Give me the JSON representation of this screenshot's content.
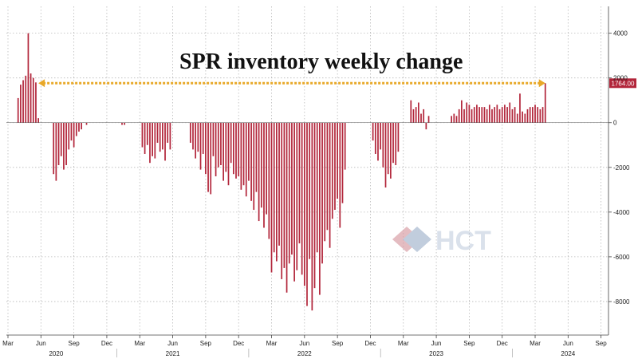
{
  "chart_data": {
    "type": "bar",
    "title": "SPR inventory weekly change",
    "ylim": [
      -9500,
      5200
    ],
    "yticks": [
      4000,
      2000,
      0,
      -2000,
      -4000,
      -6000,
      -8000
    ],
    "grid": true,
    "bar_color": "#b2253a",
    "reference_line": {
      "value": 1764,
      "color": "#e8a828",
      "label": "1764.00"
    },
    "x_ticks": [
      {
        "label": "Mar",
        "week": 0
      },
      {
        "label": "Jun",
        "week": 13
      },
      {
        "label": "Sep",
        "week": 26
      },
      {
        "label": "Dec",
        "week": 39
      },
      {
        "label": "Mar",
        "week": 52
      },
      {
        "label": "Jun",
        "week": 65
      },
      {
        "label": "Sep",
        "week": 78
      },
      {
        "label": "Dec",
        "week": 91
      },
      {
        "label": "Mar",
        "week": 104
      },
      {
        "label": "Jun",
        "week": 117
      },
      {
        "label": "Sep",
        "week": 130
      },
      {
        "label": "Dec",
        "week": 143
      },
      {
        "label": "Mar",
        "week": 156
      },
      {
        "label": "Jun",
        "week": 169
      },
      {
        "label": "Sep",
        "week": 182
      },
      {
        "label": "Dec",
        "week": 195
      },
      {
        "label": "Mar",
        "week": 208
      },
      {
        "label": "Jun",
        "week": 221
      },
      {
        "label": "Sep",
        "week": 234
      }
    ],
    "year_labels": [
      {
        "label": "2020",
        "week": 19
      },
      {
        "label": "2021",
        "week": 65
      },
      {
        "label": "2022",
        "week": 117
      },
      {
        "label": "2023",
        "week": 169
      },
      {
        "label": "2024",
        "week": 221
      }
    ],
    "series": [
      {
        "week": 4,
        "value": 1100
      },
      {
        "week": 5,
        "value": 1700
      },
      {
        "week": 6,
        "value": 1900
      },
      {
        "week": 7,
        "value": 2100
      },
      {
        "week": 8,
        "value": 4000
      },
      {
        "week": 9,
        "value": 2200
      },
      {
        "week": 10,
        "value": 2000
      },
      {
        "week": 11,
        "value": 1800
      },
      {
        "week": 12,
        "value": 200
      },
      {
        "week": 18,
        "value": -2300
      },
      {
        "week": 19,
        "value": -2600
      },
      {
        "week": 20,
        "value": -1900
      },
      {
        "week": 21,
        "value": -1500
      },
      {
        "week": 22,
        "value": -2100
      },
      {
        "week": 23,
        "value": -1900
      },
      {
        "week": 24,
        "value": -1200
      },
      {
        "week": 25,
        "value": -800
      },
      {
        "week": 26,
        "value": -1100
      },
      {
        "week": 27,
        "value": -600
      },
      {
        "week": 28,
        "value": -400
      },
      {
        "week": 29,
        "value": -300
      },
      {
        "week": 31,
        "value": -100
      },
      {
        "week": 45,
        "value": -100
      },
      {
        "week": 46,
        "value": -100
      },
      {
        "week": 53,
        "value": -1100
      },
      {
        "week": 54,
        "value": -1400
      },
      {
        "week": 55,
        "value": -1000
      },
      {
        "week": 56,
        "value": -1800
      },
      {
        "week": 57,
        "value": -1500
      },
      {
        "week": 58,
        "value": -1600
      },
      {
        "week": 59,
        "value": -900
      },
      {
        "week": 60,
        "value": -1300
      },
      {
        "week": 61,
        "value": -1200
      },
      {
        "week": 62,
        "value": -1700
      },
      {
        "week": 63,
        "value": -900
      },
      {
        "week": 64,
        "value": -1200
      },
      {
        "week": 72,
        "value": -900
      },
      {
        "week": 73,
        "value": -1200
      },
      {
        "week": 74,
        "value": -1600
      },
      {
        "week": 75,
        "value": -1300
      },
      {
        "week": 76,
        "value": -2100
      },
      {
        "week": 77,
        "value": -1400
      },
      {
        "week": 78,
        "value": -2300
      },
      {
        "week": 79,
        "value": -3100
      },
      {
        "week": 80,
        "value": -3200
      },
      {
        "week": 81,
        "value": -1500
      },
      {
        "week": 82,
        "value": -2400
      },
      {
        "week": 83,
        "value": -2000
      },
      {
        "week": 84,
        "value": -1900
      },
      {
        "week": 85,
        "value": -2600
      },
      {
        "week": 86,
        "value": -2200
      },
      {
        "week": 87,
        "value": -2800
      },
      {
        "week": 88,
        "value": -1800
      },
      {
        "week": 89,
        "value": -2300
      },
      {
        "week": 90,
        "value": -2500
      },
      {
        "week": 91,
        "value": -2400
      },
      {
        "week": 92,
        "value": -3000
      },
      {
        "week": 93,
        "value": -2800
      },
      {
        "week": 94,
        "value": -3300
      },
      {
        "week": 95,
        "value": -2600
      },
      {
        "week": 96,
        "value": -3500
      },
      {
        "week": 97,
        "value": -3900
      },
      {
        "week": 98,
        "value": -3100
      },
      {
        "week": 99,
        "value": -4400
      },
      {
        "week": 100,
        "value": -3800
      },
      {
        "week": 101,
        "value": -4700
      },
      {
        "week": 102,
        "value": -4100
      },
      {
        "week": 103,
        "value": -5200
      },
      {
        "week": 104,
        "value": -6700
      },
      {
        "week": 105,
        "value": -5800
      },
      {
        "week": 106,
        "value": -6200
      },
      {
        "week": 107,
        "value": -5500
      },
      {
        "week": 108,
        "value": -7000
      },
      {
        "week": 109,
        "value": -6500
      },
      {
        "week": 110,
        "value": -7600
      },
      {
        "week": 111,
        "value": -6300
      },
      {
        "week": 112,
        "value": -5900
      },
      {
        "week": 113,
        "value": -7100
      },
      {
        "week": 114,
        "value": -6600
      },
      {
        "week": 115,
        "value": -5400
      },
      {
        "week": 116,
        "value": -6800
      },
      {
        "week": 117,
        "value": -7300
      },
      {
        "week": 118,
        "value": -8200
      },
      {
        "week": 119,
        "value": -6100
      },
      {
        "week": 120,
        "value": -8400
      },
      {
        "week": 121,
        "value": -7400
      },
      {
        "week": 122,
        "value": -5800
      },
      {
        "week": 123,
        "value": -7700
      },
      {
        "week": 124,
        "value": -6300
      },
      {
        "week": 125,
        "value": -5300
      },
      {
        "week": 126,
        "value": -4800
      },
      {
        "week": 127,
        "value": -5600
      },
      {
        "week": 128,
        "value": -4300
      },
      {
        "week": 129,
        "value": -3900
      },
      {
        "week": 130,
        "value": -3400
      },
      {
        "week": 131,
        "value": -4700
      },
      {
        "week": 132,
        "value": -3600
      },
      {
        "week": 133,
        "value": -2100
      },
      {
        "week": 144,
        "value": -800
      },
      {
        "week": 145,
        "value": -1400
      },
      {
        "week": 146,
        "value": -1700
      },
      {
        "week": 147,
        "value": -1200
      },
      {
        "week": 148,
        "value": -2000
      },
      {
        "week": 149,
        "value": -2900
      },
      {
        "week": 150,
        "value": -2300
      },
      {
        "week": 151,
        "value": -2500
      },
      {
        "week": 152,
        "value": -1800
      },
      {
        "week": 153,
        "value": -1900
      },
      {
        "week": 154,
        "value": -1300
      },
      {
        "week": 159,
        "value": 1000
      },
      {
        "week": 160,
        "value": 600
      },
      {
        "week": 161,
        "value": 700
      },
      {
        "week": 162,
        "value": 900
      },
      {
        "week": 163,
        "value": 400
      },
      {
        "week": 164,
        "value": 600
      },
      {
        "week": 165,
        "value": -300
      },
      {
        "week": 166,
        "value": 300
      },
      {
        "week": 175,
        "value": 300
      },
      {
        "week": 176,
        "value": 400
      },
      {
        "week": 177,
        "value": 300
      },
      {
        "week": 178,
        "value": 600
      },
      {
        "week": 179,
        "value": 1000
      },
      {
        "week": 180,
        "value": 600
      },
      {
        "week": 181,
        "value": 900
      },
      {
        "week": 182,
        "value": 800
      },
      {
        "week": 183,
        "value": 600
      },
      {
        "week": 184,
        "value": 700
      },
      {
        "week": 185,
        "value": 800
      },
      {
        "week": 186,
        "value": 700
      },
      {
        "week": 187,
        "value": 700
      },
      {
        "week": 188,
        "value": 700
      },
      {
        "week": 189,
        "value": 600
      },
      {
        "week": 190,
        "value": 800
      },
      {
        "week": 191,
        "value": 600
      },
      {
        "week": 192,
        "value": 700
      },
      {
        "week": 193,
        "value": 800
      },
      {
        "week": 194,
        "value": 600
      },
      {
        "week": 195,
        "value": 700
      },
      {
        "week": 196,
        "value": 800
      },
      {
        "week": 197,
        "value": 700
      },
      {
        "week": 198,
        "value": 900
      },
      {
        "week": 199,
        "value": 600
      },
      {
        "week": 200,
        "value": 700
      },
      {
        "week": 201,
        "value": 400
      },
      {
        "week": 202,
        "value": 1300
      },
      {
        "week": 203,
        "value": 500
      },
      {
        "week": 204,
        "value": 400
      },
      {
        "week": 205,
        "value": 600
      },
      {
        "week": 206,
        "value": 700
      },
      {
        "week": 207,
        "value": 700
      },
      {
        "week": 208,
        "value": 800
      },
      {
        "week": 209,
        "value": 700
      },
      {
        "week": 210,
        "value": 600
      },
      {
        "week": 211,
        "value": 700
      },
      {
        "week": 212,
        "value": 1764
      }
    ]
  },
  "watermark": {
    "text": "HCT"
  }
}
